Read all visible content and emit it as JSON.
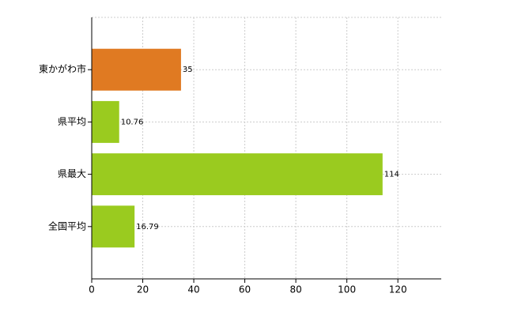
{
  "chart_data": {
    "type": "bar",
    "orientation": "horizontal",
    "categories": [
      "東かがわ市",
      "県平均",
      "県最大",
      "全国平均"
    ],
    "values": [
      35,
      10.76,
      114,
      16.79
    ],
    "colors": [
      "#e07a22",
      "#9acb1f",
      "#9acb1f",
      "#9acb1f"
    ],
    "xlim": [
      0,
      137
    ],
    "xticks": [
      0,
      20,
      40,
      60,
      80,
      100,
      120
    ],
    "grid": true
  }
}
